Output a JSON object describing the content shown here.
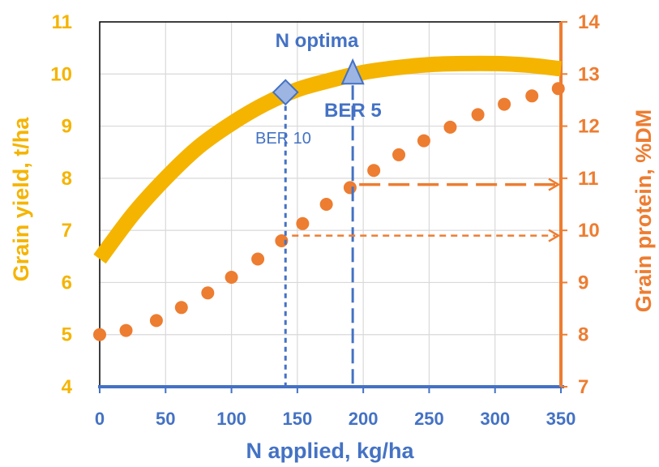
{
  "chart_data": {
    "type": "line",
    "x_axis": {
      "label": "N applied, kg/ha",
      "range": [
        0,
        350
      ],
      "ticks": [
        0,
        50,
        100,
        150,
        200,
        250,
        300,
        350
      ]
    },
    "y_left": {
      "label": "Grain yield, t/ha",
      "range": [
        4,
        11
      ],
      "ticks": [
        4,
        5,
        6,
        7,
        8,
        9,
        10,
        11
      ]
    },
    "y_right": {
      "label": "Grain protein, %DM",
      "range": [
        7,
        14
      ],
      "ticks": [
        7,
        8,
        9,
        10,
        11,
        12,
        13,
        14
      ]
    },
    "grid": true,
    "series": [
      {
        "axis": "left",
        "style": "thick-line",
        "color": "#F5B400",
        "points": [
          [
            0,
            6.45
          ],
          [
            25,
            7.3
          ],
          [
            50,
            8.0
          ],
          [
            75,
            8.6
          ],
          [
            100,
            9.05
          ],
          [
            125,
            9.42
          ],
          [
            150,
            9.7
          ],
          [
            175,
            9.88
          ],
          [
            200,
            10.03
          ],
          [
            225,
            10.12
          ],
          [
            250,
            10.18
          ],
          [
            275,
            10.2
          ],
          [
            300,
            10.2
          ],
          [
            325,
            10.17
          ],
          [
            350,
            10.1
          ]
        ]
      },
      {
        "axis": "right",
        "style": "dots",
        "color": "#ED7D31",
        "points": [
          [
            0,
            8.0
          ],
          [
            20,
            8.08
          ],
          [
            43,
            8.27
          ],
          [
            62,
            8.52
          ],
          [
            82,
            8.8
          ],
          [
            100,
            9.1
          ],
          [
            120,
            9.45
          ],
          [
            138,
            9.8
          ],
          [
            154,
            10.13
          ],
          [
            172,
            10.5
          ],
          [
            190,
            10.82
          ],
          [
            208,
            11.15
          ],
          [
            227,
            11.45
          ],
          [
            246,
            11.72
          ],
          [
            266,
            11.98
          ],
          [
            287,
            12.22
          ],
          [
            307,
            12.42
          ],
          [
            328,
            12.58
          ],
          [
            348,
            12.72
          ]
        ]
      }
    ],
    "annotations": {
      "n_optima_label": "N optima",
      "ber10": {
        "label": "BER 10",
        "x": 141,
        "y": 9.65,
        "marker": "diamond"
      },
      "ber5": {
        "label": "BER 5",
        "x": 192,
        "y": 10.0,
        "marker": "triangle"
      },
      "protein_arrows": [
        {
          "from_x": 141,
          "protein": 9.9,
          "dash": "short"
        },
        {
          "from_x": 192,
          "protein": 10.88,
          "dash": "long"
        }
      ]
    },
    "colors": {
      "yield": "#F5B400",
      "protein": "#ED7D31",
      "axis_blue": "#4472C4",
      "marker_fill": "#9DB5E3",
      "grid": "#D9D9D9"
    }
  }
}
